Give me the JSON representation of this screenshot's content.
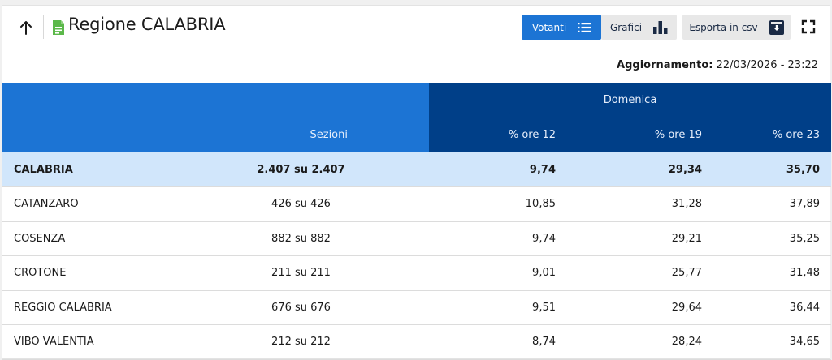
{
  "header": {
    "title": "Regione CALABRIA",
    "buttons": {
      "votanti": "Votanti",
      "grafici": "Grafici",
      "csv": "Esporta in csv"
    },
    "update_label": "Aggiornamento:",
    "update_value": "22/03/2026 - 23:22"
  },
  "table": {
    "group_header": "Domenica",
    "columns": {
      "sezioni": "Sezioni",
      "ore12": "% ore 12",
      "ore19": "% ore 19",
      "ore23": "% ore 23"
    },
    "rows": [
      {
        "name": "CALABRIA",
        "sezioni": "2.407 su 2.407",
        "ore12": "9,74",
        "ore19": "29,34",
        "ore23": "35,70"
      },
      {
        "name": "CATANZARO",
        "sezioni": "426 su 426",
        "ore12": "10,85",
        "ore19": "31,28",
        "ore23": "37,89"
      },
      {
        "name": "COSENZA",
        "sezioni": "882 su 882",
        "ore12": "9,74",
        "ore19": "29,21",
        "ore23": "35,25"
      },
      {
        "name": "CROTONE",
        "sezioni": "211 su 211",
        "ore12": "9,01",
        "ore19": "25,77",
        "ore23": "31,48"
      },
      {
        "name": "REGGIO CALABRIA",
        "sezioni": "676 su 676",
        "ore12": "9,51",
        "ore19": "29,64",
        "ore23": "36,44"
      },
      {
        "name": "VIBO VALENTIA",
        "sezioni": "212 su 212",
        "ore12": "8,74",
        "ore19": "28,24",
        "ore23": "34,65"
      }
    ]
  },
  "colors": {
    "accent": "#1c74d4",
    "navy": "#003f88",
    "total_row": "#d1e6fb",
    "doc_icon": "#5bb84a"
  },
  "icons": {
    "back": "arrow-up-icon",
    "title": "document-icon",
    "votanti": "list-icon",
    "grafici": "bar-chart-icon",
    "csv": "download-box-icon",
    "fullscreen": "fullscreen-icon"
  }
}
